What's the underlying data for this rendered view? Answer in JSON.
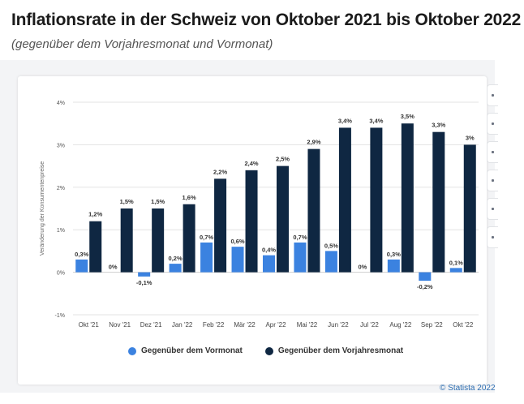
{
  "header": {
    "title": "Inflationsrate in der Schweiz von Oktober 2021 bis Oktober 2022",
    "subtitle": "(gegenüber dem Vorjahresmonat und Vormonat)"
  },
  "colors": {
    "vormonat": "#3b82e0",
    "vorjahresmonat": "#0f2742",
    "grid": "#e3e3e3",
    "axis_text": "#555555"
  },
  "chart_data": {
    "type": "bar",
    "title": "Inflationsrate in der Schweiz von Oktober 2021 bis Oktober 2022",
    "subtitle": "(gegenüber dem Vorjahresmonat und Vormonat)",
    "xlabel": "",
    "ylabel": "Veränderung der Konsumentenpreise",
    "ylim": [
      -1,
      4
    ],
    "yticks": [
      -1,
      0,
      1,
      2,
      3,
      4
    ],
    "ytick_labels": [
      "-1%",
      "0%",
      "1%",
      "2%",
      "3%",
      "4%"
    ],
    "grid": true,
    "categories": [
      "Okt '21",
      "Nov '21",
      "Dez '21",
      "Jan '22",
      "Feb '22",
      "Mär '22",
      "Apr '22",
      "Mai '22",
      "Jun '22",
      "Jul '22",
      "Aug '22",
      "Sep '22",
      "Okt '22"
    ],
    "series": [
      {
        "name": "Gegenüber dem Vormonat",
        "values": [
          0.3,
          0,
          -0.1,
          0.2,
          0.7,
          0.6,
          0.4,
          0.7,
          0.5,
          0,
          0.3,
          -0.2,
          0.1
        ],
        "labels": [
          "0,3%",
          "0%",
          "-0,1%",
          "0,2%",
          "0,7%",
          "0,6%",
          "0,4%",
          "0,7%",
          "0,5%",
          "0%",
          "0,3%",
          "-0,2%",
          "0,1%"
        ]
      },
      {
        "name": "Gegenüber dem Vorjahresmonat",
        "values": [
          1.2,
          1.5,
          1.5,
          1.6,
          2.2,
          2.4,
          2.5,
          2.9,
          3.4,
          3.4,
          3.5,
          3.3,
          3.0
        ],
        "labels": [
          "1,2%",
          "1,5%",
          "1,5%",
          "1,6%",
          "2,2%",
          "2,4%",
          "2,5%",
          "2,9%",
          "3,4%",
          "3,4%",
          "3,5%",
          "3,3%",
          "3%"
        ]
      }
    ],
    "legend_position": "bottom"
  },
  "legend": {
    "item1": "Gegenüber dem Vormonat",
    "item2": "Gegenüber dem Vorjahresmonat"
  },
  "footer": {
    "credit": "© Statista 2022"
  }
}
